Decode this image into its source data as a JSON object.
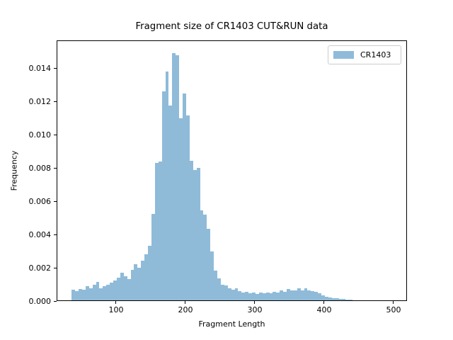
{
  "chart_data": {
    "type": "histogram",
    "title": "Fragment size of CR1403 CUT&RUN data",
    "xlabel": "Fragment Length",
    "ylabel": "Frequency",
    "background": "#ffffff",
    "grid": false,
    "series": [
      {
        "name": "CR1403",
        "color": "#8fbbd9"
      }
    ],
    "legend": {
      "position": "upper right",
      "entries": [
        {
          "label": "CR1403",
          "color": "#8fbbd9"
        }
      ]
    },
    "bin_start": 36,
    "bin_width": 5,
    "values": [
      0.00068,
      0.0006,
      0.00074,
      0.00067,
      0.00091,
      0.00078,
      0.00098,
      0.00116,
      0.00075,
      0.00091,
      0.00098,
      0.00109,
      0.00123,
      0.0014,
      0.00169,
      0.00149,
      0.00131,
      0.00189,
      0.0022,
      0.00199,
      0.00244,
      0.00281,
      0.00332,
      0.00523,
      0.0083,
      0.00838,
      0.01259,
      0.01379,
      0.01174,
      0.01489,
      0.01478,
      0.01098,
      0.01248,
      0.01114,
      0.00843,
      0.00787,
      0.008,
      0.00546,
      0.00518,
      0.00435,
      0.00298,
      0.00182,
      0.00137,
      0.00097,
      0.00092,
      0.00075,
      0.00067,
      0.00075,
      0.00058,
      0.0005,
      0.00056,
      0.00045,
      0.0005,
      0.00041,
      0.00049,
      0.00047,
      0.00049,
      0.00047,
      0.00054,
      0.00049,
      0.00062,
      0.00054,
      0.00071,
      0.00065,
      0.00065,
      0.00075,
      0.00065,
      0.00075,
      0.00062,
      0.00058,
      0.00054,
      0.00047,
      0.00035,
      0.00024,
      0.0002,
      0.00016,
      0.00016,
      0.00011,
      0.00011,
      9e-05,
      7e-05,
      6e-05,
      5e-05,
      5e-05,
      4e-05
    ],
    "xlim": [
      14.3,
      519.4
    ],
    "ylim": [
      0,
      0.01566
    ],
    "xticks": [
      100,
      200,
      300,
      400,
      500
    ],
    "xtick_labels": [
      "100",
      "200",
      "300",
      "400",
      "500"
    ],
    "yticks": [
      0,
      0.002,
      0.004,
      0.006,
      0.008,
      0.01,
      0.012,
      0.014
    ],
    "ytick_labels": [
      "0.000",
      "0.002",
      "0.004",
      "0.006",
      "0.008",
      "0.010",
      "0.012",
      "0.014"
    ]
  },
  "colors": {
    "bar_fill": "#8fbbd9",
    "axis": "#000000",
    "legend_border": "#cccccc",
    "text": "#000000"
  }
}
